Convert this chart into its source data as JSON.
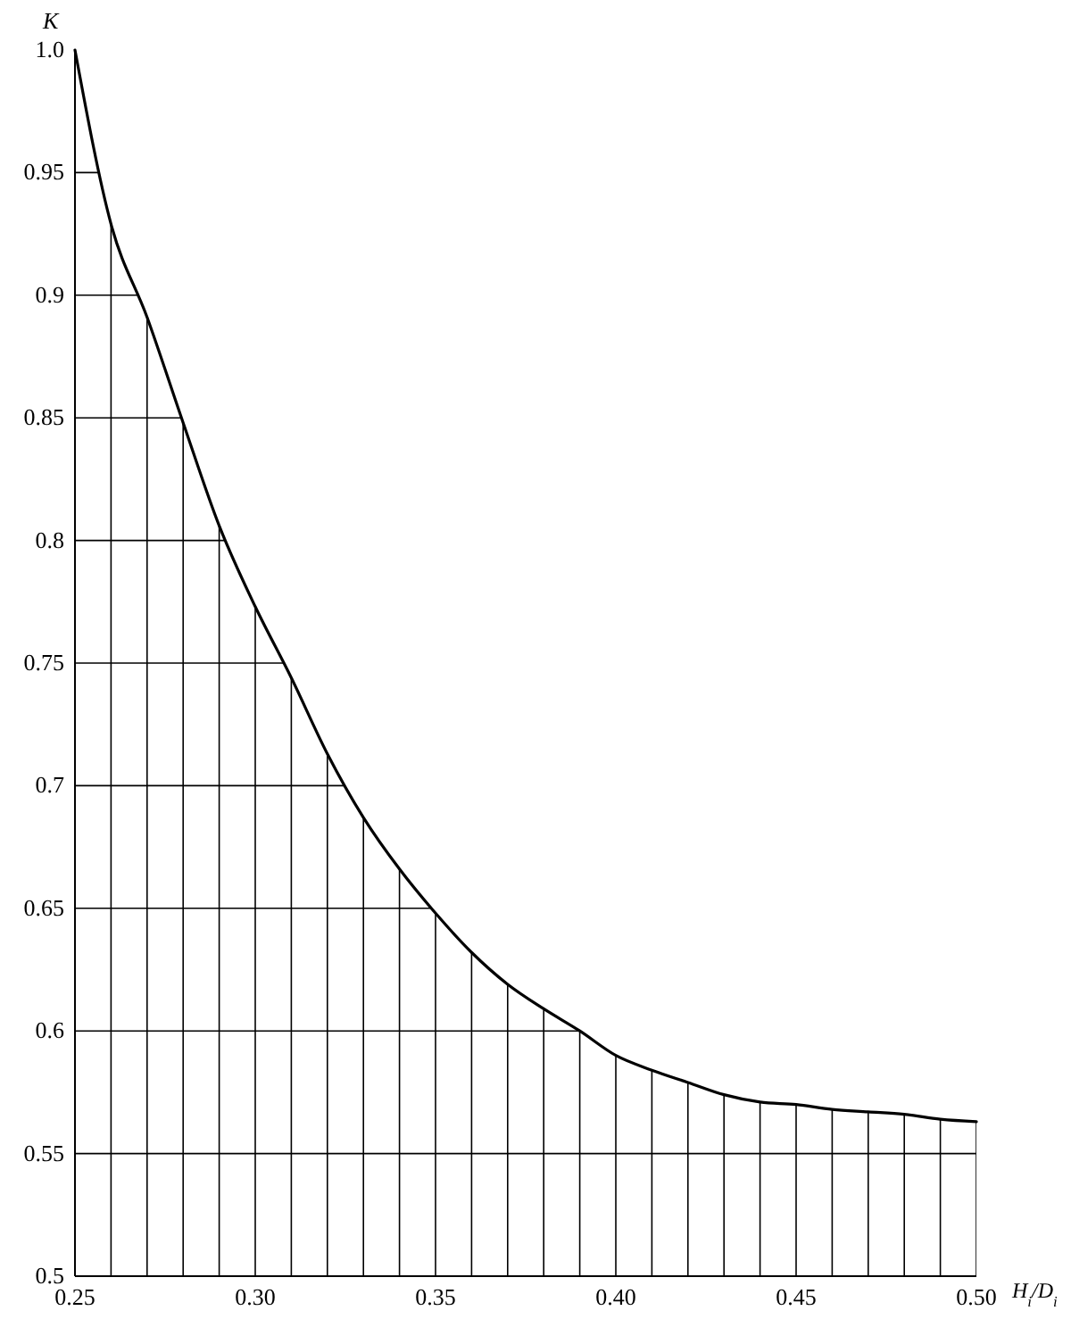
{
  "chart_data": {
    "type": "line",
    "xlabel": "H$_{i}$/D$_{i}$",
    "ylabel": "K",
    "x": [
      0.25,
      0.26,
      0.27,
      0.28,
      0.29,
      0.3,
      0.31,
      0.32,
      0.33,
      0.34,
      0.35,
      0.36,
      0.37,
      0.38,
      0.39,
      0.4,
      0.41,
      0.42,
      0.43,
      0.44,
      0.45,
      0.46,
      0.47,
      0.48,
      0.49,
      0.5
    ],
    "series": [
      {
        "color": "#000000",
        "values": [
          1.0,
          0.929,
          0.891,
          0.848,
          0.806,
          0.773,
          0.744,
          0.713,
          0.687,
          0.666,
          0.648,
          0.632,
          0.619,
          0.609,
          0.6,
          0.59,
          0.584,
          0.579,
          0.574,
          0.571,
          0.57,
          0.568,
          0.567,
          0.566,
          0.564,
          0.563
        ]
      }
    ],
    "xlim": [
      0.25,
      0.5
    ],
    "xticks": [
      0.25,
      {
        "value": 0.26,
        "label": null
      },
      {
        "value": 0.27,
        "label": null
      },
      {
        "value": 0.28,
        "label": null
      },
      {
        "value": 0.29,
        "label": null
      },
      {
        "value": 0.3,
        "label": "0.30"
      },
      {
        "value": 0.31,
        "label": null
      },
      {
        "value": 0.32,
        "label": null
      },
      {
        "value": 0.33,
        "label": null
      },
      {
        "value": 0.34,
        "label": null
      },
      0.35,
      {
        "value": 0.36,
        "label": null
      },
      {
        "value": 0.37,
        "label": null
      },
      {
        "value": 0.38,
        "label": null
      },
      {
        "value": 0.39,
        "label": null
      },
      {
        "value": 0.4,
        "label": "0.40"
      },
      {
        "value": 0.41,
        "label": null
      },
      {
        "value": 0.42,
        "label": null
      },
      {
        "value": 0.43,
        "label": null
      },
      {
        "value": 0.44,
        "label": null
      },
      0.45,
      {
        "value": 0.46,
        "label": null
      },
      {
        "value": 0.47,
        "label": null
      },
      {
        "value": 0.48,
        "label": null
      },
      {
        "value": 0.49,
        "label": null
      },
      {
        "value": 0.5,
        "label": "0.50"
      }
    ],
    "ylim": [
      0.5,
      1.0
    ],
    "yticks": [
      0.5,
      0.55,
      0.6,
      0.65,
      0.7,
      0.75,
      0.8,
      0.85,
      0.9,
      0.95,
      {
        "value": 1.0,
        "label": "1.0"
      }
    ],
    "grid": true,
    "marker": "none",
    "line_style": "solid"
  }
}
